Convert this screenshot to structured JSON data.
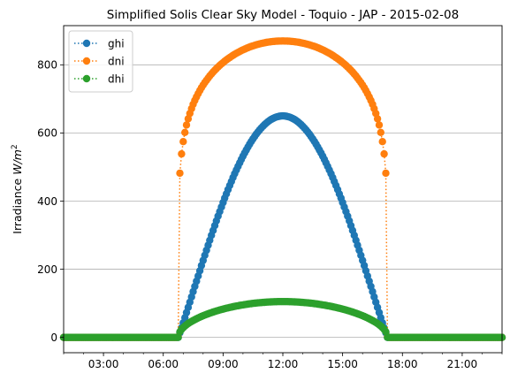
{
  "chart_data": {
    "type": "line",
    "title": "Simplified Solis Clear Sky Model - Toquio - JAP - 2015-02-08",
    "xlabel": "",
    "ylabel": "Irradiance",
    "ylabel_unit_base": "W/m",
    "ylabel_unit_exp": "2",
    "x_start_hour": 1.0,
    "x_end_hour": 23.0,
    "x_step_minutes": 5,
    "ylim": [
      -45,
      915
    ],
    "xticks": [
      "03:00",
      "06:00",
      "09:00",
      "12:00",
      "15:00",
      "18:00",
      "21:00"
    ],
    "yticks": [
      "0",
      "200",
      "400",
      "600",
      "800"
    ],
    "grid": "horizontal",
    "legend": "upper-left",
    "sunrise_hour": 6.75,
    "sunset_hour": 17.25,
    "solar_noon_hour": 12.0,
    "series": [
      {
        "name": "ghi",
        "color": "#1f77b4",
        "peak": 650,
        "profile": "ghi",
        "start_hour": 6.75,
        "end_hour": 17.25
      },
      {
        "name": "dni",
        "color": "#ff7f0e",
        "peak": 870,
        "profile": "dni",
        "start_hour": 6.75,
        "end_hour": 17.25
      },
      {
        "name": "dhi",
        "color": "#2ca02c",
        "peak": 105,
        "profile": "dhi",
        "start_hour": 6.75,
        "end_hour": 17.25
      }
    ]
  }
}
